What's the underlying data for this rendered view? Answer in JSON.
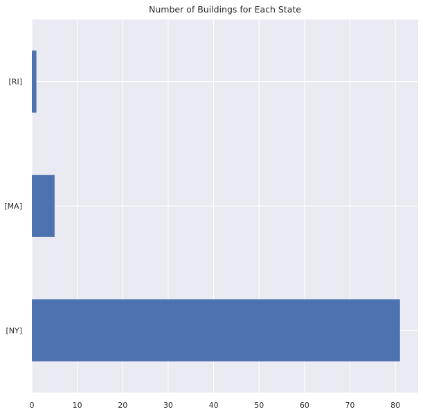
{
  "chart_data": {
    "type": "bar",
    "orientation": "horizontal",
    "title": "Number of Buildings for Each State",
    "xlabel": "",
    "ylabel": "",
    "categories": [
      "[RI]",
      "[MA]",
      "[NY]"
    ],
    "values": [
      1,
      5,
      81
    ],
    "xlim": [
      0,
      85
    ],
    "xticks": [
      0,
      10,
      20,
      30,
      40,
      50,
      60,
      70,
      80
    ],
    "grid": true,
    "legend": "none",
    "colors": {
      "bar": "#4c72b0",
      "background": "#eaeaf2",
      "grid": "#ffffff",
      "text": "#262626"
    }
  }
}
